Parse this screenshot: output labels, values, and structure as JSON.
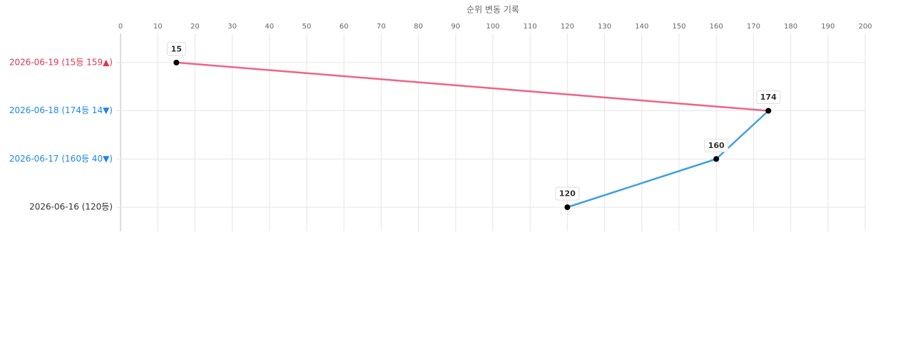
{
  "chart_data": {
    "type": "line",
    "x_label": "순위 변동 기록",
    "categories": [
      "2026-06-19 (15등 159▲)",
      "2026-06-18 (174등 14▼)",
      "2026-06-17 (160등 40▼)",
      "2026-06-16 (120등)"
    ],
    "category_colors": [
      "#e0344f",
      "#1e88e5",
      "#1e88e5",
      "#333333"
    ],
    "values": [
      15,
      174,
      160,
      120
    ],
    "segment_colors": [
      "#f06384",
      "#3fa0e0",
      "#3fa0e0"
    ],
    "point_color": "#000000",
    "xlim": [
      0,
      200
    ],
    "xticks": [
      0,
      10,
      20,
      30,
      40,
      50,
      60,
      70,
      80,
      90,
      100,
      110,
      120,
      130,
      140,
      150,
      160,
      170,
      180,
      190,
      200
    ],
    "grid": true
  }
}
